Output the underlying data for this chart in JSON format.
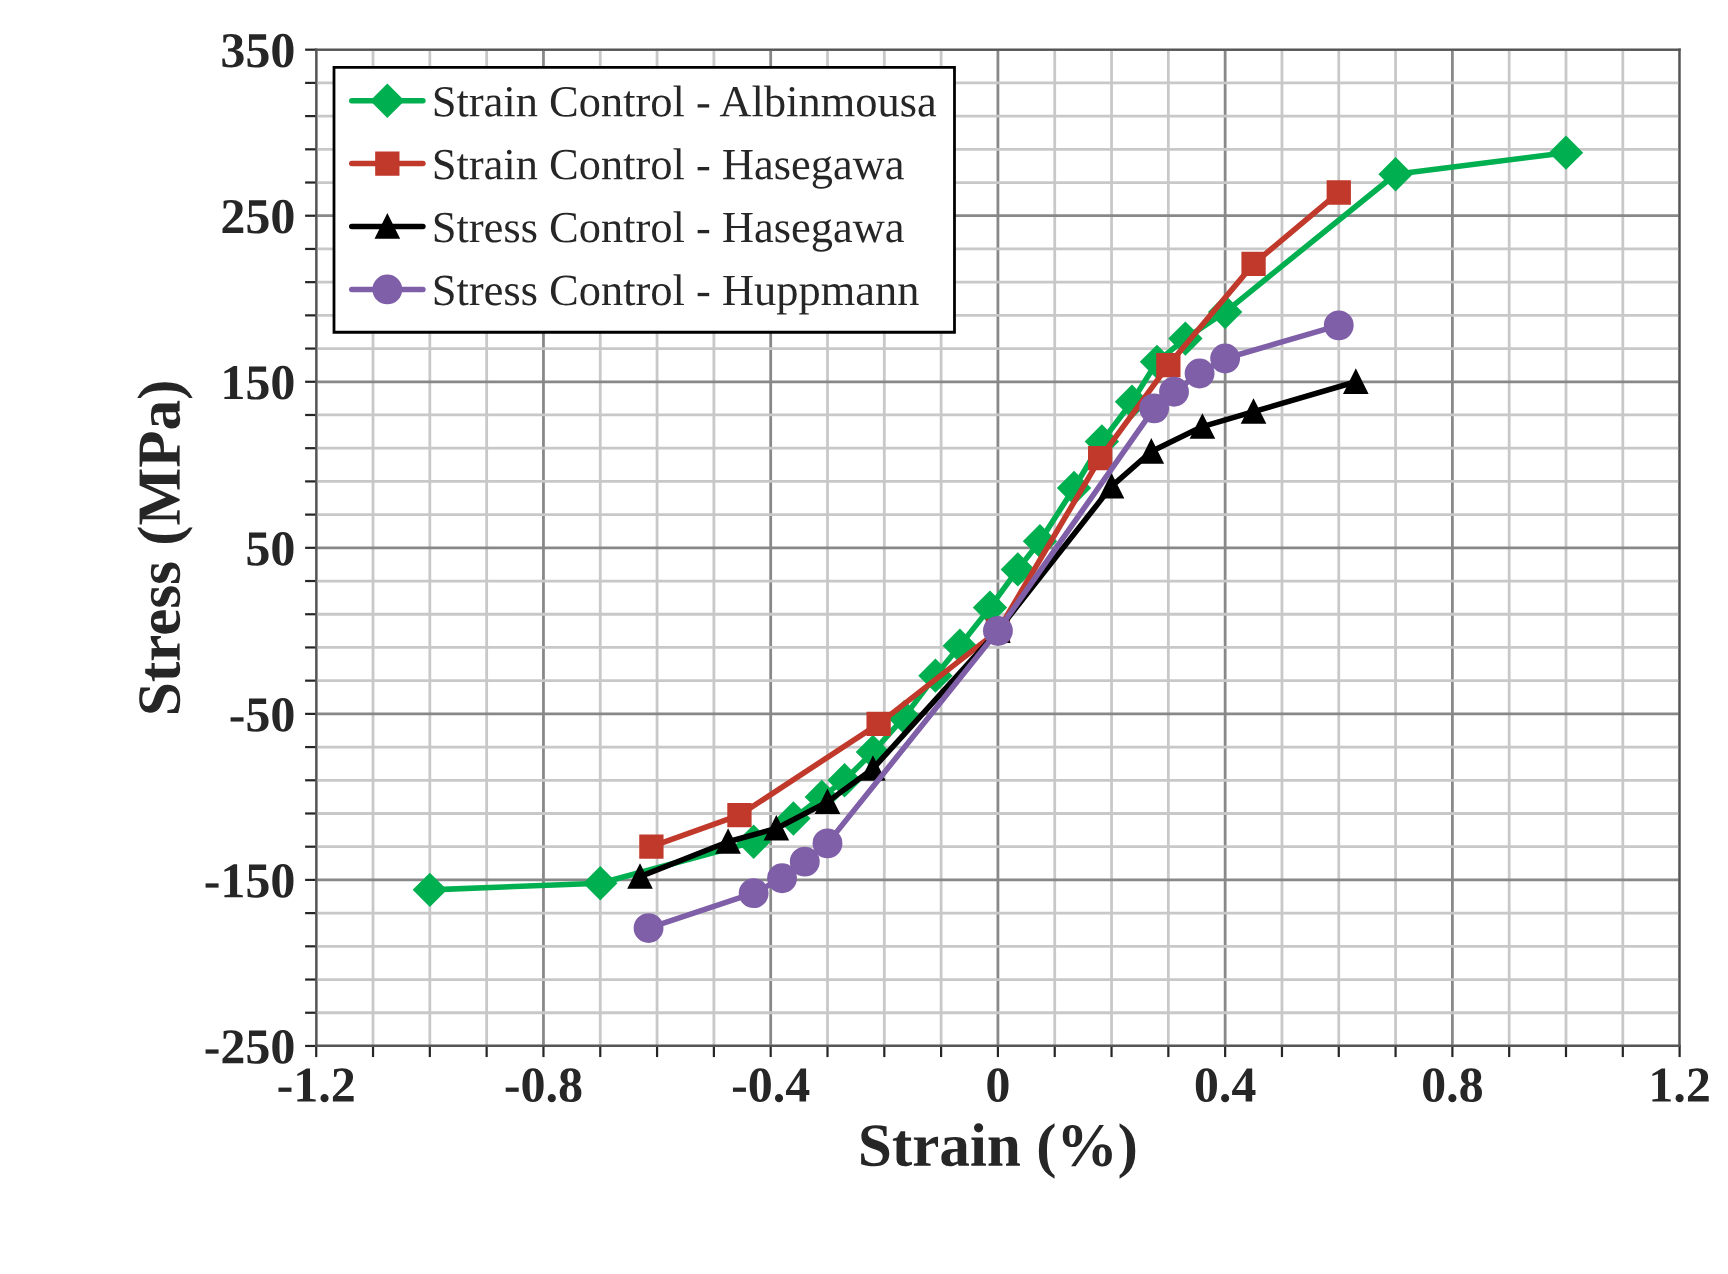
{
  "chart_data": {
    "type": "line",
    "xlabel": "Strain (%)",
    "ylabel": "Stress (MPa)",
    "xlim": [
      -1.2,
      1.2
    ],
    "ylim": [
      -250,
      350
    ],
    "xticks": [
      {
        "value": -1.2,
        "label": "-1.2"
      },
      {
        "value": -1.1,
        "label": null
      },
      {
        "value": -1.0,
        "label": null
      },
      {
        "value": -0.9,
        "label": null
      },
      {
        "value": -0.8,
        "label": "-0.8"
      },
      {
        "value": -0.7,
        "label": null
      },
      {
        "value": -0.6,
        "label": null
      },
      {
        "value": -0.5,
        "label": null
      },
      {
        "value": -0.4,
        "label": "-0.4"
      },
      {
        "value": -0.3,
        "label": null
      },
      {
        "value": -0.2,
        "label": null
      },
      {
        "value": -0.1,
        "label": null
      },
      0,
      {
        "value": 0.1,
        "label": null
      },
      {
        "value": 0.2,
        "label": null
      },
      {
        "value": 0.3,
        "label": null
      },
      {
        "value": 0.4,
        "label": "0.4"
      },
      {
        "value": 0.5,
        "label": null
      },
      {
        "value": 0.6,
        "label": null
      },
      {
        "value": 0.7,
        "label": null
      },
      {
        "value": 0.8,
        "label": "0.8"
      },
      {
        "value": 0.9,
        "label": null
      },
      {
        "value": 1.0,
        "label": null
      },
      {
        "value": 1.1,
        "label": null
      },
      {
        "value": 1.2,
        "label": "1.2"
      }
    ],
    "yticks": [
      -250,
      {
        "value": -230,
        "label": null
      },
      {
        "value": -210,
        "label": null
      },
      {
        "value": -190,
        "label": null
      },
      {
        "value": -170,
        "label": null
      },
      -150,
      {
        "value": -130,
        "label": null
      },
      {
        "value": -110,
        "label": null
      },
      {
        "value": -90,
        "label": null
      },
      {
        "value": -70,
        "label": null
      },
      -50,
      {
        "value": -30,
        "label": null
      },
      {
        "value": -10,
        "label": null
      },
      {
        "value": 10,
        "label": null
      },
      {
        "value": 30,
        "label": null
      },
      50,
      {
        "value": 70,
        "label": null
      },
      {
        "value": 90,
        "label": null
      },
      {
        "value": 110,
        "label": null
      },
      {
        "value": 130,
        "label": null
      },
      150,
      {
        "value": 170,
        "label": null
      },
      {
        "value": 190,
        "label": null
      },
      {
        "value": 210,
        "label": null
      },
      {
        "value": 230,
        "label": null
      },
      250,
      {
        "value": 270,
        "label": null
      },
      {
        "value": 290,
        "label": null
      },
      {
        "value": 310,
        "label": null
      },
      {
        "value": 330,
        "label": null
      },
      350
    ],
    "grid": true,
    "legend": "top left",
    "line_style": "solid",
    "series": [
      {
        "name": "Strain Control - Albinmousa",
        "color": "#00b050",
        "marker": "diamond",
        "x": [
          -1.0,
          -0.7,
          -0.43,
          -0.36,
          -0.31,
          -0.27,
          -0.22,
          -0.165,
          -0.11,
          -0.067,
          -0.014,
          0.035,
          0.074,
          0.134,
          0.183,
          0.236,
          0.28,
          0.33,
          0.4,
          0.7,
          1.0
        ],
        "values": [
          -156,
          -152,
          -127,
          -113,
          -100,
          -90,
          -73,
          -52,
          -27,
          -9,
          14,
          37,
          54,
          86,
          114,
          138,
          162,
          176,
          192,
          275,
          288
        ]
      },
      {
        "name": "Strain Control - Hasegawa",
        "color": "#c0392b",
        "marker": "square",
        "x": [
          -0.61,
          -0.455,
          -0.21,
          0,
          0.18,
          0.3,
          0.45,
          0.6
        ],
        "values": [
          -130,
          -111,
          -56,
          0,
          104,
          160,
          221,
          264
        ]
      },
      {
        "name": "Stress Control - Hasegawa",
        "color": "#000000",
        "marker": "triangle",
        "x": [
          -0.63,
          -0.475,
          -0.39,
          -0.3,
          -0.22,
          0,
          0.2,
          0.27,
          0.36,
          0.45,
          0.63
        ],
        "values": [
          -148,
          -127,
          -119,
          -103,
          -83,
          0,
          87,
          108,
          123,
          132,
          150
        ]
      },
      {
        "name": "Stress Control - Huppmann",
        "color": "#7f5fa8",
        "marker": "circle",
        "x": [
          -0.615,
          -0.43,
          -0.38,
          -0.34,
          -0.3,
          0,
          0.275,
          0.31,
          0.355,
          0.4,
          0.6
        ],
        "values": [
          -179,
          -158,
          -149,
          -139,
          -128,
          0,
          134,
          144,
          155,
          164,
          184
        ]
      }
    ]
  }
}
